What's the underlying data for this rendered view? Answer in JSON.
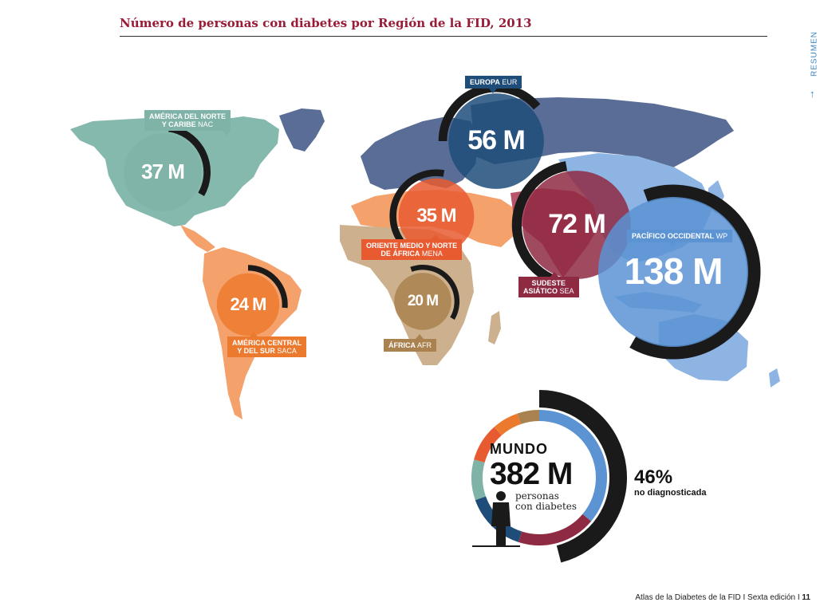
{
  "title": "Número de personas con diabetes por Región de la FID, 2013",
  "side_tab": {
    "label": "RESUMEN",
    "arrow": "↑"
  },
  "footer": {
    "book": "Atlas de la Diabetes de la FID",
    "edition": "Sexta edición",
    "page": "11",
    "sep": "I"
  },
  "colors": {
    "NAC": "#7fb3a7",
    "SACA": "#ec7a2e",
    "MENA": "#e85a30",
    "AFR": "#a9824f",
    "EUR": "#1f4d7a",
    "SEA": "#8f2a43",
    "WP": "#5b93d3",
    "ring": "#1a1a1a"
  },
  "chart_data": {
    "type": "bubble-map",
    "title": "Número de personas con diabetes por Región de la FID, 2013",
    "unit": "M",
    "regions": [
      {
        "code": "NAC",
        "name": "AMÉRICA DEL NORTE Y CARIBE",
        "name_lines": [
          "AMÉRICA DEL NORTE",
          "Y CARIBE"
        ],
        "value": 37,
        "display": "37 M",
        "undiagnosed_share": 0.27
      },
      {
        "code": "SACA",
        "name": "AMÉRICA CENTRAL Y DEL SUR",
        "name_lines": [
          "AMÉRICA CENTRAL",
          "Y DEL SUR"
        ],
        "value": 24,
        "display": "24 M",
        "undiagnosed_share": 0.24
      },
      {
        "code": "MENA",
        "name": "ORIENTE MEDIO Y NORTE DE ÁFRICA",
        "name_lines": [
          "ORIENTE MEDIO Y NORTE",
          "DE ÁFRICA"
        ],
        "value": 35,
        "display": "35 M",
        "undiagnosed_share": 0.5
      },
      {
        "code": "AFR",
        "name": "ÁFRICA",
        "name_lines": [
          "ÁFRICA"
        ],
        "value": 20,
        "display": "20 M",
        "undiagnosed_share": 0.63
      },
      {
        "code": "EUR",
        "name": "EUROPA",
        "name_lines": [
          "EUROPA"
        ],
        "value": 56,
        "display": "56 M",
        "undiagnosed_share": 0.36
      },
      {
        "code": "SEA",
        "name": "SUDESTE ASIÁTICO",
        "name_lines": [
          "SUDESTE",
          "ASIÁTICO"
        ],
        "value": 72,
        "display": "72 M",
        "undiagnosed_share": 0.5
      },
      {
        "code": "WP",
        "name": "PACÍFICO OCCIDENTAL",
        "name_lines": [
          "PACÍFICO OCCIDENTAL"
        ],
        "value": 138,
        "display": "138 M",
        "undiagnosed_share": 0.54
      }
    ],
    "world": {
      "label": "MUNDO",
      "value": 382,
      "display": "382 M",
      "sub_lines": [
        "personas",
        "con diabetes"
      ],
      "undiagnosed_pct": 46,
      "undiagnosed_display": "46%",
      "undiagnosed_label": "no diagnosticada",
      "donut_order": [
        "WP",
        "SEA",
        "EUR",
        "NAC",
        "MENA",
        "SACA",
        "AFR"
      ]
    }
  }
}
